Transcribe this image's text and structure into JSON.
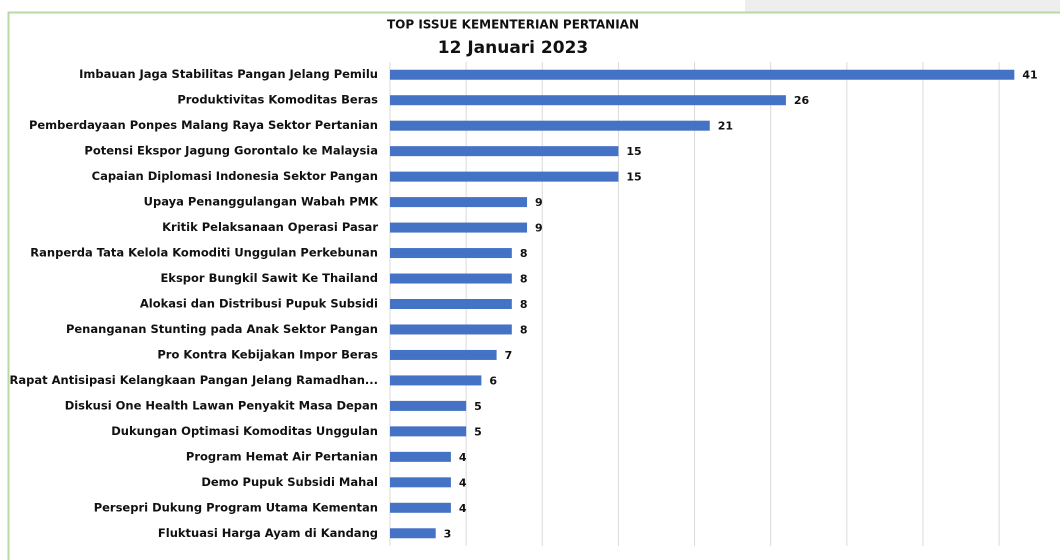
{
  "chart_data": {
    "type": "barh",
    "title": "TOP ISSUE KEMENTERIAN PERTANIAN",
    "subtitle": "12 Januari 2023",
    "categories": [
      "Imbauan Jaga Stabilitas Pangan Jelang Pemilu",
      "Produktivitas Komoditas Beras",
      "Pemberdayaan Ponpes Malang Raya Sektor Pertanian",
      "Potensi Ekspor Jagung Gorontalo ke Malaysia",
      "Capaian Diplomasi Indonesia Sektor Pangan",
      "Upaya Penanggulangan Wabah PMK",
      "Kritik Pelaksanaan Operasi Pasar",
      "Ranperda Tata Kelola Komoditi Unggulan Perkebunan",
      "Ekspor Bungkil Sawit Ke Thailand",
      "Alokasi dan Distribusi Pupuk Subsidi",
      "Penanganan Stunting pada Anak Sektor Pangan",
      "Pro Kontra Kebijakan Impor Beras",
      "Rapat Antisipasi Kelangkaan Pangan Jelang Ramadhan...",
      "Diskusi One Health Lawan Penyakit Masa Depan",
      "Dukungan Optimasi Komoditas Unggulan",
      "Program Hemat Air Pertanian",
      "Demo Pupuk Subsidi Mahal",
      "Persepri Dukung Program Utama Kementan",
      "Fluktuasi Harga Ayam di Kandang"
    ],
    "values": [
      41,
      26,
      21,
      15,
      15,
      9,
      9,
      8,
      8,
      8,
      8,
      7,
      6,
      5,
      5,
      4,
      4,
      4,
      3
    ],
    "color": "#4472c4",
    "xlim": [
      0,
      44
    ],
    "xticks": [
      0,
      5,
      10,
      15,
      20,
      25,
      30,
      35,
      40
    ],
    "grid": true
  }
}
